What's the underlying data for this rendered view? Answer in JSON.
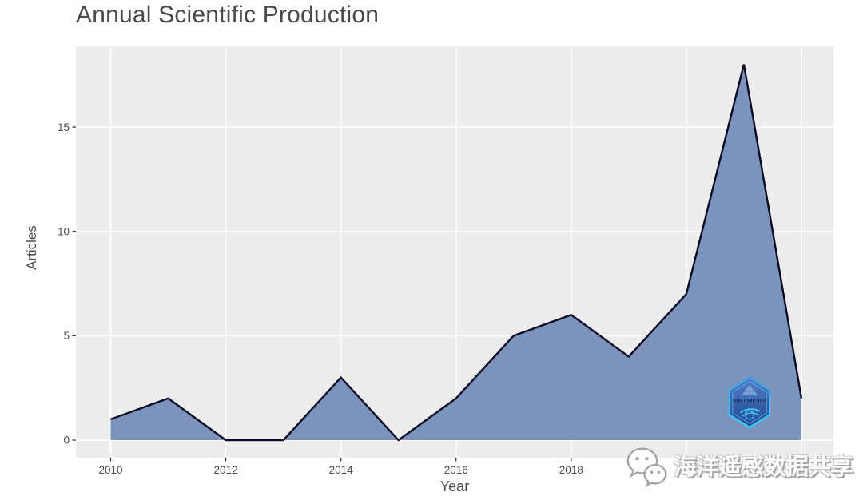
{
  "title": "Annual Scientific Production",
  "chart_data": {
    "type": "area",
    "title": "Annual Scientific Production",
    "xlabel": "Year",
    "ylabel": "Articles",
    "x": [
      2010,
      2011,
      2012,
      2013,
      2014,
      2015,
      2016,
      2017,
      2018,
      2019,
      2020,
      2021,
      2022
    ],
    "values": [
      1,
      2,
      0,
      0,
      3,
      0,
      2,
      5,
      6,
      4,
      7,
      18,
      2
    ],
    "x_tick_labels": [
      "2010",
      "2012",
      "2014",
      "2016",
      "2018"
    ],
    "x_gridline_years": [
      2010,
      2012,
      2014,
      2016,
      2018,
      2020,
      2022
    ],
    "y_ticks": [
      "0",
      "5",
      "10",
      "15"
    ],
    "xlim": [
      2009.4,
      2022.6
    ],
    "ylim": [
      -0.9,
      18.9
    ],
    "grid": "major-only, white on gray panel",
    "legend": "none",
    "colors": {
      "page_bg": "#FFFFFF",
      "panel_bg": "#EDEDED",
      "gridline": "#FFFFFF",
      "area_fill": "#6F88B6",
      "line": "#0A0A23",
      "tick": "#333333",
      "axis_text": "#4D4D4D",
      "title_text": "#4A4A4A"
    }
  },
  "watermarks": {
    "logo_text": "BIBLIOMETRIX",
    "social_text": "海洋遥感数据共享"
  }
}
